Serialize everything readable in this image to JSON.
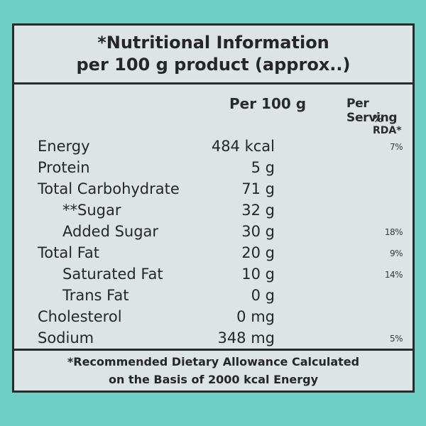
{
  "header": {
    "title": "*Nutritional Information",
    "subtitle": "per 100 g product (approx..)"
  },
  "columns": {
    "per_100g": "Per 100 g",
    "per_serving": "Per Serving",
    "rda": "% RDA*"
  },
  "rows": [
    {
      "name": "Energy",
      "value": "484 kcal",
      "rda": "7%"
    },
    {
      "name": "Protein",
      "value": "5 g",
      "rda": ""
    },
    {
      "name": "Total Carbohydrate",
      "value": "71 g",
      "rda": ""
    },
    {
      "name": "**Sugar",
      "value": "32 g",
      "rda": ""
    },
    {
      "name": "Added Sugar",
      "value": "30 g",
      "rda": "18%"
    },
    {
      "name": "Total Fat",
      "value": "20 g",
      "rda": "9%"
    },
    {
      "name": "Saturated Fat",
      "value": "10 g",
      "rda": "14%"
    },
    {
      "name": "Trans Fat",
      "value": "0 g",
      "rda": ""
    },
    {
      "name": "Cholesterol",
      "value": "0 mg",
      "rda": ""
    },
    {
      "name": "Sodium",
      "value": "348 mg",
      "rda": "5%"
    }
  ],
  "footer": {
    "line1": "*Recommended Dietary Allowance Calculated",
    "line2": "on the Basis of 2000 kcal Energy"
  },
  "colors": {
    "background": "#6fcfc4",
    "panel": "#dde4e6",
    "border": "#2a2a2a",
    "text": "#262626"
  }
}
